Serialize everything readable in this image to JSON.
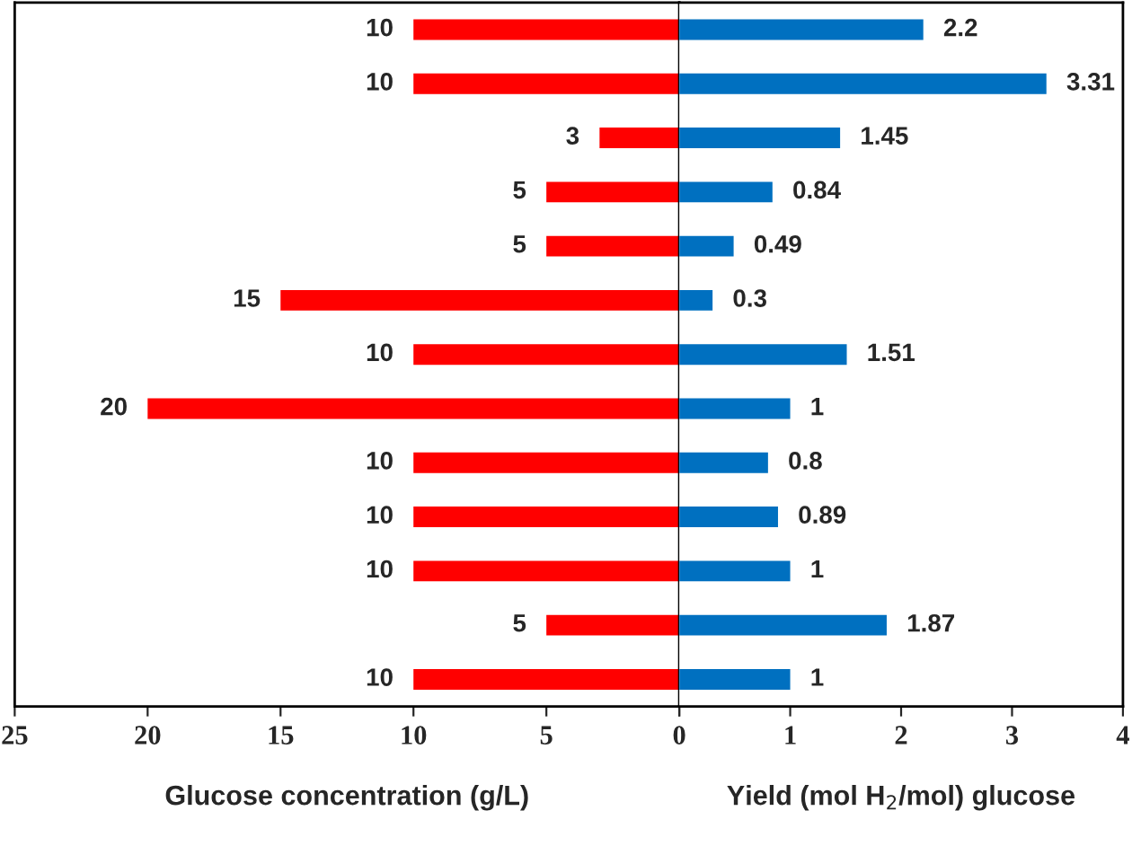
{
  "chart_data": [
    {
      "type": "bar",
      "orientation": "horizontal",
      "xlabel": "Glucose concentration (g/L)",
      "categories": [
        null,
        null,
        null,
        null,
        null,
        null,
        null,
        null,
        null,
        null,
        null,
        null,
        null
      ],
      "series": [
        {
          "color": "#ff0000",
          "values": [
            10,
            10,
            3,
            5,
            5,
            15,
            10,
            20,
            10,
            10,
            10,
            5,
            10
          ]
        }
      ],
      "xlim": [
        25,
        0
      ],
      "xticks": [
        25,
        20,
        15,
        10,
        5,
        {
          "value": 0,
          "label": null
        }
      ],
      "data_labels": true
    },
    {
      "type": "bar",
      "orientation": "horizontal",
      "xlabel": "Yield (mol H$_{2}$/mol) glucose",
      "categories": [
        null,
        null,
        null,
        null,
        null,
        null,
        null,
        null,
        null,
        null,
        null,
        null,
        null
      ],
      "series": [
        {
          "color": "#0070c0",
          "values": [
            2.2,
            3.31,
            1.45,
            0.84,
            0.49,
            0.3,
            1.51,
            1,
            0.8,
            0.89,
            1,
            1.87,
            1
          ]
        }
      ],
      "xlim": [
        0,
        4
      ],
      "xticks": [
        0,
        1,
        2,
        3,
        4
      ],
      "data_labels": true
    }
  ]
}
